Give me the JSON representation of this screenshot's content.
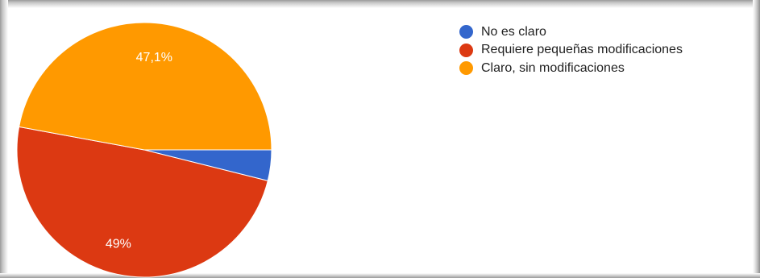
{
  "chart_data": {
    "type": "pie",
    "categories": [
      "No es claro",
      "Requiere pequeñas modificaciones",
      "Claro, sin modificaciones"
    ],
    "values": [
      3.9,
      49,
      47.1
    ],
    "data_labels": [
      "",
      "49%",
      "47,1%"
    ],
    "colors": [
      "#3366cc",
      "#dc3912",
      "#ff9900"
    ],
    "legend": {
      "placement": "right-top",
      "entries": [
        "No es claro",
        "Requiere pequeñas modificaciones",
        "Claro, sin modificaciones"
      ]
    }
  }
}
